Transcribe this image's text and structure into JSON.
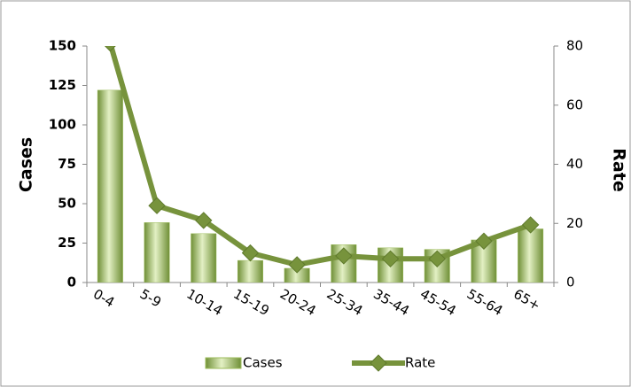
{
  "chart_data": {
    "type": "bar",
    "categories": [
      "0-4",
      "5-9",
      "10-14",
      "15-19",
      "20-24",
      "25-34",
      "35-44",
      "45-54",
      "55-64",
      "65+"
    ],
    "series": [
      {
        "name": "Cases",
        "type": "bar",
        "color": "#9bbb59",
        "values": [
          122,
          38,
          31,
          14,
          9,
          24,
          22,
          21,
          27,
          34
        ]
      },
      {
        "name": "Rate",
        "type": "line",
        "axis": "y2",
        "color": "#77933c",
        "values": [
          81,
          26,
          21,
          10,
          6,
          9,
          8,
          8,
          14,
          19.5
        ]
      }
    ],
    "ylabel": "Cases",
    "y2label": "Rate",
    "ylim": [
      0,
      150
    ],
    "yticks": [
      0,
      25,
      50,
      75,
      100,
      125,
      150
    ],
    "y2lim": [
      0,
      80
    ],
    "y2ticks": [
      0,
      20,
      40,
      60,
      80
    ],
    "legend": "bottom"
  }
}
